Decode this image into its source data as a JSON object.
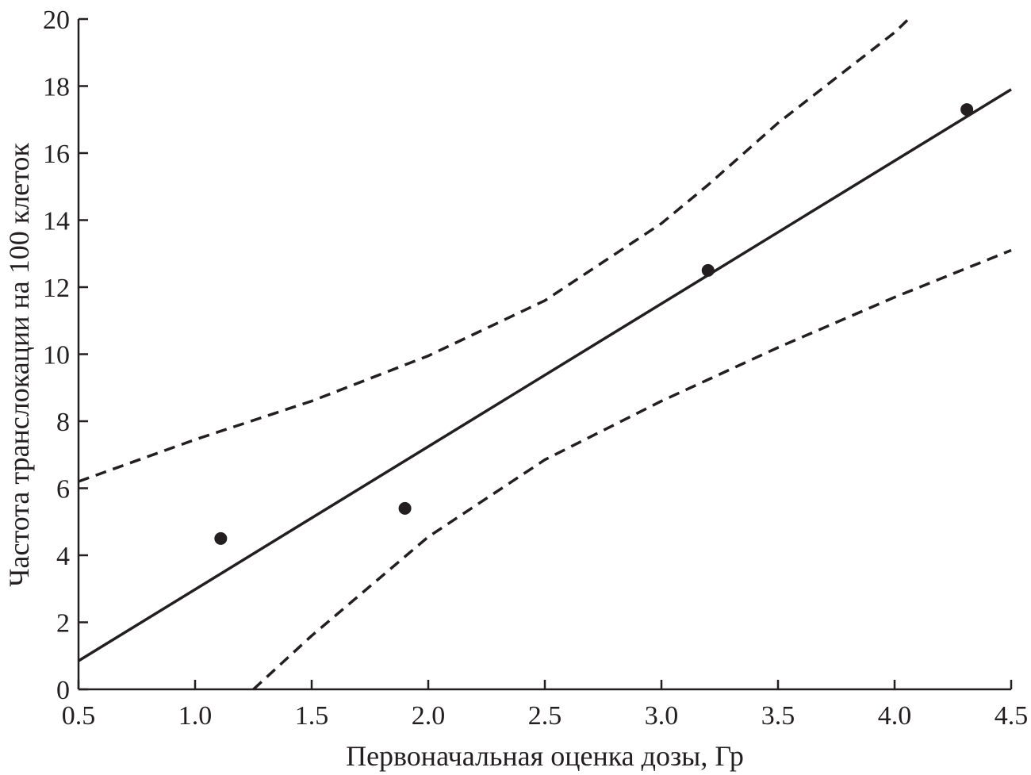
{
  "chart_data": {
    "type": "scatter",
    "xlabel": "Первоначальная оценка дозы, Гр",
    "ylabel": "Частота транслокации на 100 клеток",
    "xlim": [
      0.5,
      4.5
    ],
    "ylim": [
      0,
      20
    ],
    "x_ticks": [
      "0.5",
      "1.0",
      "1.5",
      "2.0",
      "2.5",
      "3.0",
      "3.5",
      "4.0",
      "4.5"
    ],
    "y_ticks": [
      "0",
      "2",
      "4",
      "6",
      "8",
      "10",
      "12",
      "14",
      "16",
      "18",
      "20"
    ],
    "grid": false,
    "series": [
      {
        "kind": "points",
        "x": [
          1.11,
          1.9,
          3.2,
          4.31
        ],
        "y": [
          4.5,
          5.4,
          12.5,
          17.3
        ]
      },
      {
        "kind": "line",
        "style": "solid",
        "x": [
          0.5,
          4.5
        ],
        "y": [
          0.85,
          17.9
        ]
      },
      {
        "kind": "line",
        "style": "dashed",
        "x": [
          0.5,
          1.0,
          1.5,
          2.0,
          2.5,
          3.0,
          3.2,
          3.5,
          4.0,
          4.06
        ],
        "y": [
          6.2,
          7.45,
          8.6,
          9.95,
          11.6,
          13.9,
          15.05,
          16.9,
          19.6,
          20.0
        ]
      },
      {
        "kind": "line",
        "style": "dashed",
        "x": [
          1.25,
          1.5,
          2.0,
          2.5,
          3.0,
          3.5,
          4.0,
          4.5
        ],
        "y": [
          0.0,
          1.6,
          4.55,
          6.85,
          8.6,
          10.2,
          11.7,
          13.1
        ]
      }
    ],
    "colors": {
      "ink": "#231f20",
      "background": "#ffffff"
    }
  }
}
